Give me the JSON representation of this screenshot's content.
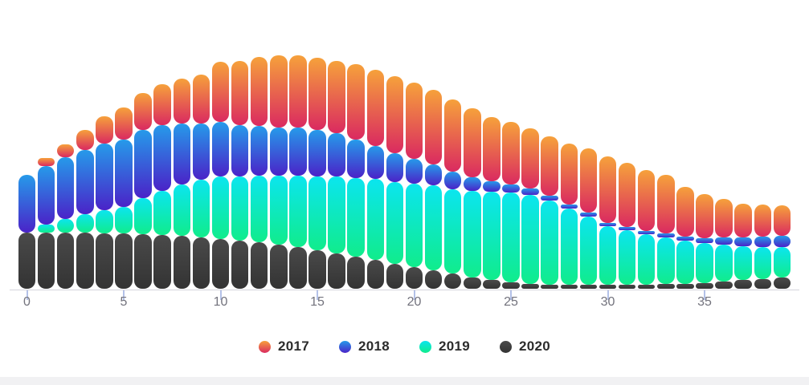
{
  "chart_data": {
    "type": "bar",
    "subtype": "stacked-rounded-columns",
    "title": "",
    "xlabel": "",
    "ylabel": "",
    "y_axis_visible": false,
    "grid": false,
    "legend_position": "bottom",
    "xlim": [
      0,
      39
    ],
    "ylim": [
      0,
      320
    ],
    "xticks": [
      0,
      5,
      10,
      15,
      20,
      25,
      30,
      35
    ],
    "x": [
      0,
      1,
      2,
      3,
      4,
      5,
      6,
      7,
      8,
      9,
      10,
      11,
      12,
      13,
      14,
      15,
      16,
      17,
      18,
      19,
      20,
      21,
      22,
      23,
      24,
      25,
      26,
      27,
      28,
      29,
      30,
      31,
      32,
      33,
      34,
      35,
      36,
      37,
      38,
      39
    ],
    "stack_order_bottom_to_top": [
      "2020",
      "2019",
      "2018",
      "2017"
    ],
    "series": [
      {
        "name": "2017",
        "gradient_top": "#F6A13B",
        "gradient_bottom": "#DA2A60",
        "values": [
          0,
          10,
          16,
          25,
          34,
          40,
          46,
          51,
          56,
          61,
          75,
          80,
          86,
          90,
          90,
          90,
          90,
          94,
          95,
          96,
          95,
          93,
          90,
          86,
          80,
          78,
          75,
          74,
          76,
          80,
          83,
          80,
          76,
          73,
          62,
          55,
          48,
          42,
          40,
          38
        ]
      },
      {
        "name": "2018",
        "gradient_top": "#269AEA",
        "gradient_bottom": "#4A23C8",
        "values": [
          72,
          73,
          77,
          80,
          83,
          84,
          85,
          82,
          76,
          70,
          68,
          64,
          62,
          60,
          60,
          58,
          54,
          48,
          41,
          36,
          31,
          26,
          22,
          17,
          13,
          10,
          8,
          6,
          5,
          5,
          4,
          4,
          4,
          5,
          5,
          6,
          9,
          11,
          13,
          14
        ]
      },
      {
        "name": "2019",
        "gradient_top": "#0BE5EF",
        "gradient_bottom": "#10EC8C",
        "values": [
          0,
          10,
          17,
          23,
          29,
          33,
          45,
          55,
          64,
          72,
          78,
          80,
          83,
          86,
          89,
          92,
          96,
          98,
          101,
          102,
          104,
          106,
          105,
          108,
          110,
          112,
          111,
          105,
          95,
          85,
          73,
          68,
          63,
          58,
          54,
          50,
          46,
          42,
          40,
          38
        ]
      },
      {
        "name": "2020",
        "gradient_top": "#4A4A4A",
        "gradient_bottom": "#333333",
        "values": [
          70,
          70,
          70,
          70,
          69,
          69,
          68,
          67,
          66,
          64,
          62,
          60,
          58,
          55,
          52,
          48,
          44,
          40,
          36,
          31,
          27,
          23,
          19,
          14,
          11,
          8,
          6,
          5,
          5,
          5,
          5,
          5,
          5,
          6,
          6,
          7,
          9,
          11,
          12,
          14
        ]
      }
    ]
  },
  "axis": {
    "tick_labels": [
      "0",
      "5",
      "10",
      "15",
      "20",
      "25",
      "30",
      "35"
    ]
  },
  "legend": {
    "items": [
      {
        "label": "2017"
      },
      {
        "label": "2018"
      },
      {
        "label": "2019"
      },
      {
        "label": "2020"
      }
    ]
  },
  "colors": {
    "background": "#ffffff",
    "axis_line": "#d4d4dd",
    "tick_mark": "#b3c1e8",
    "tick_label": "#73737d",
    "legend_label": "#2c2c2c",
    "bottom_strip": "#f1f1f3"
  }
}
